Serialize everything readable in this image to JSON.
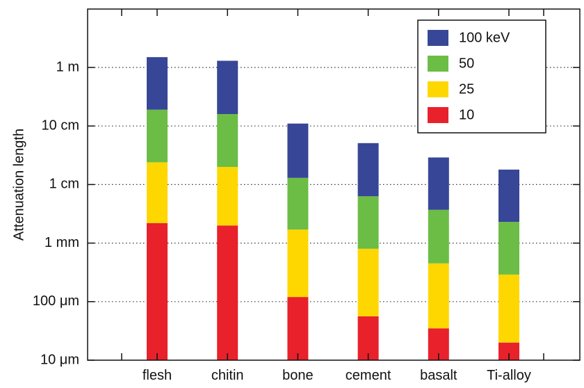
{
  "chart_data": {
    "type": "bar",
    "stacked": true,
    "y_scale": "log",
    "categories": [
      "flesh",
      "chitin",
      "bone",
      "cement",
      "basalt",
      "Ti-alloy"
    ],
    "series": [
      {
        "name": "10",
        "color": "#e8212b",
        "values": [
          0.0022,
          0.002,
          0.00012,
          5.6e-05,
          3.5e-05,
          2e-05
        ]
      },
      {
        "name": "25",
        "color": "#ffd700",
        "values": [
          0.024,
          0.02,
          0.0017,
          0.0008,
          0.00045,
          0.00029
        ]
      },
      {
        "name": "50",
        "color": "#6bbd45",
        "values": [
          0.19,
          0.16,
          0.013,
          0.0063,
          0.0037,
          0.0023
        ]
      },
      {
        "name": "100 keV",
        "color": "#374696",
        "values": [
          1.5,
          1.3,
          0.11,
          0.051,
          0.029,
          0.018
        ]
      }
    ],
    "ylabel": "Attenuation length",
    "ylim": [
      1e-05,
      10
    ],
    "y_ticks": [
      {
        "value": 1e-05,
        "label": "10 μm"
      },
      {
        "value": 0.0001,
        "label": "100 μm"
      },
      {
        "value": 0.001,
        "label": "1 mm"
      },
      {
        "value": 0.01,
        "label": "1 cm"
      },
      {
        "value": 0.1,
        "label": "10 cm"
      },
      {
        "value": 1,
        "label": "1 m"
      }
    ],
    "legend": {
      "position": "top-right",
      "order": [
        "100 keV",
        "50",
        "25",
        "10"
      ]
    },
    "grid": "horizontal-dotted"
  }
}
